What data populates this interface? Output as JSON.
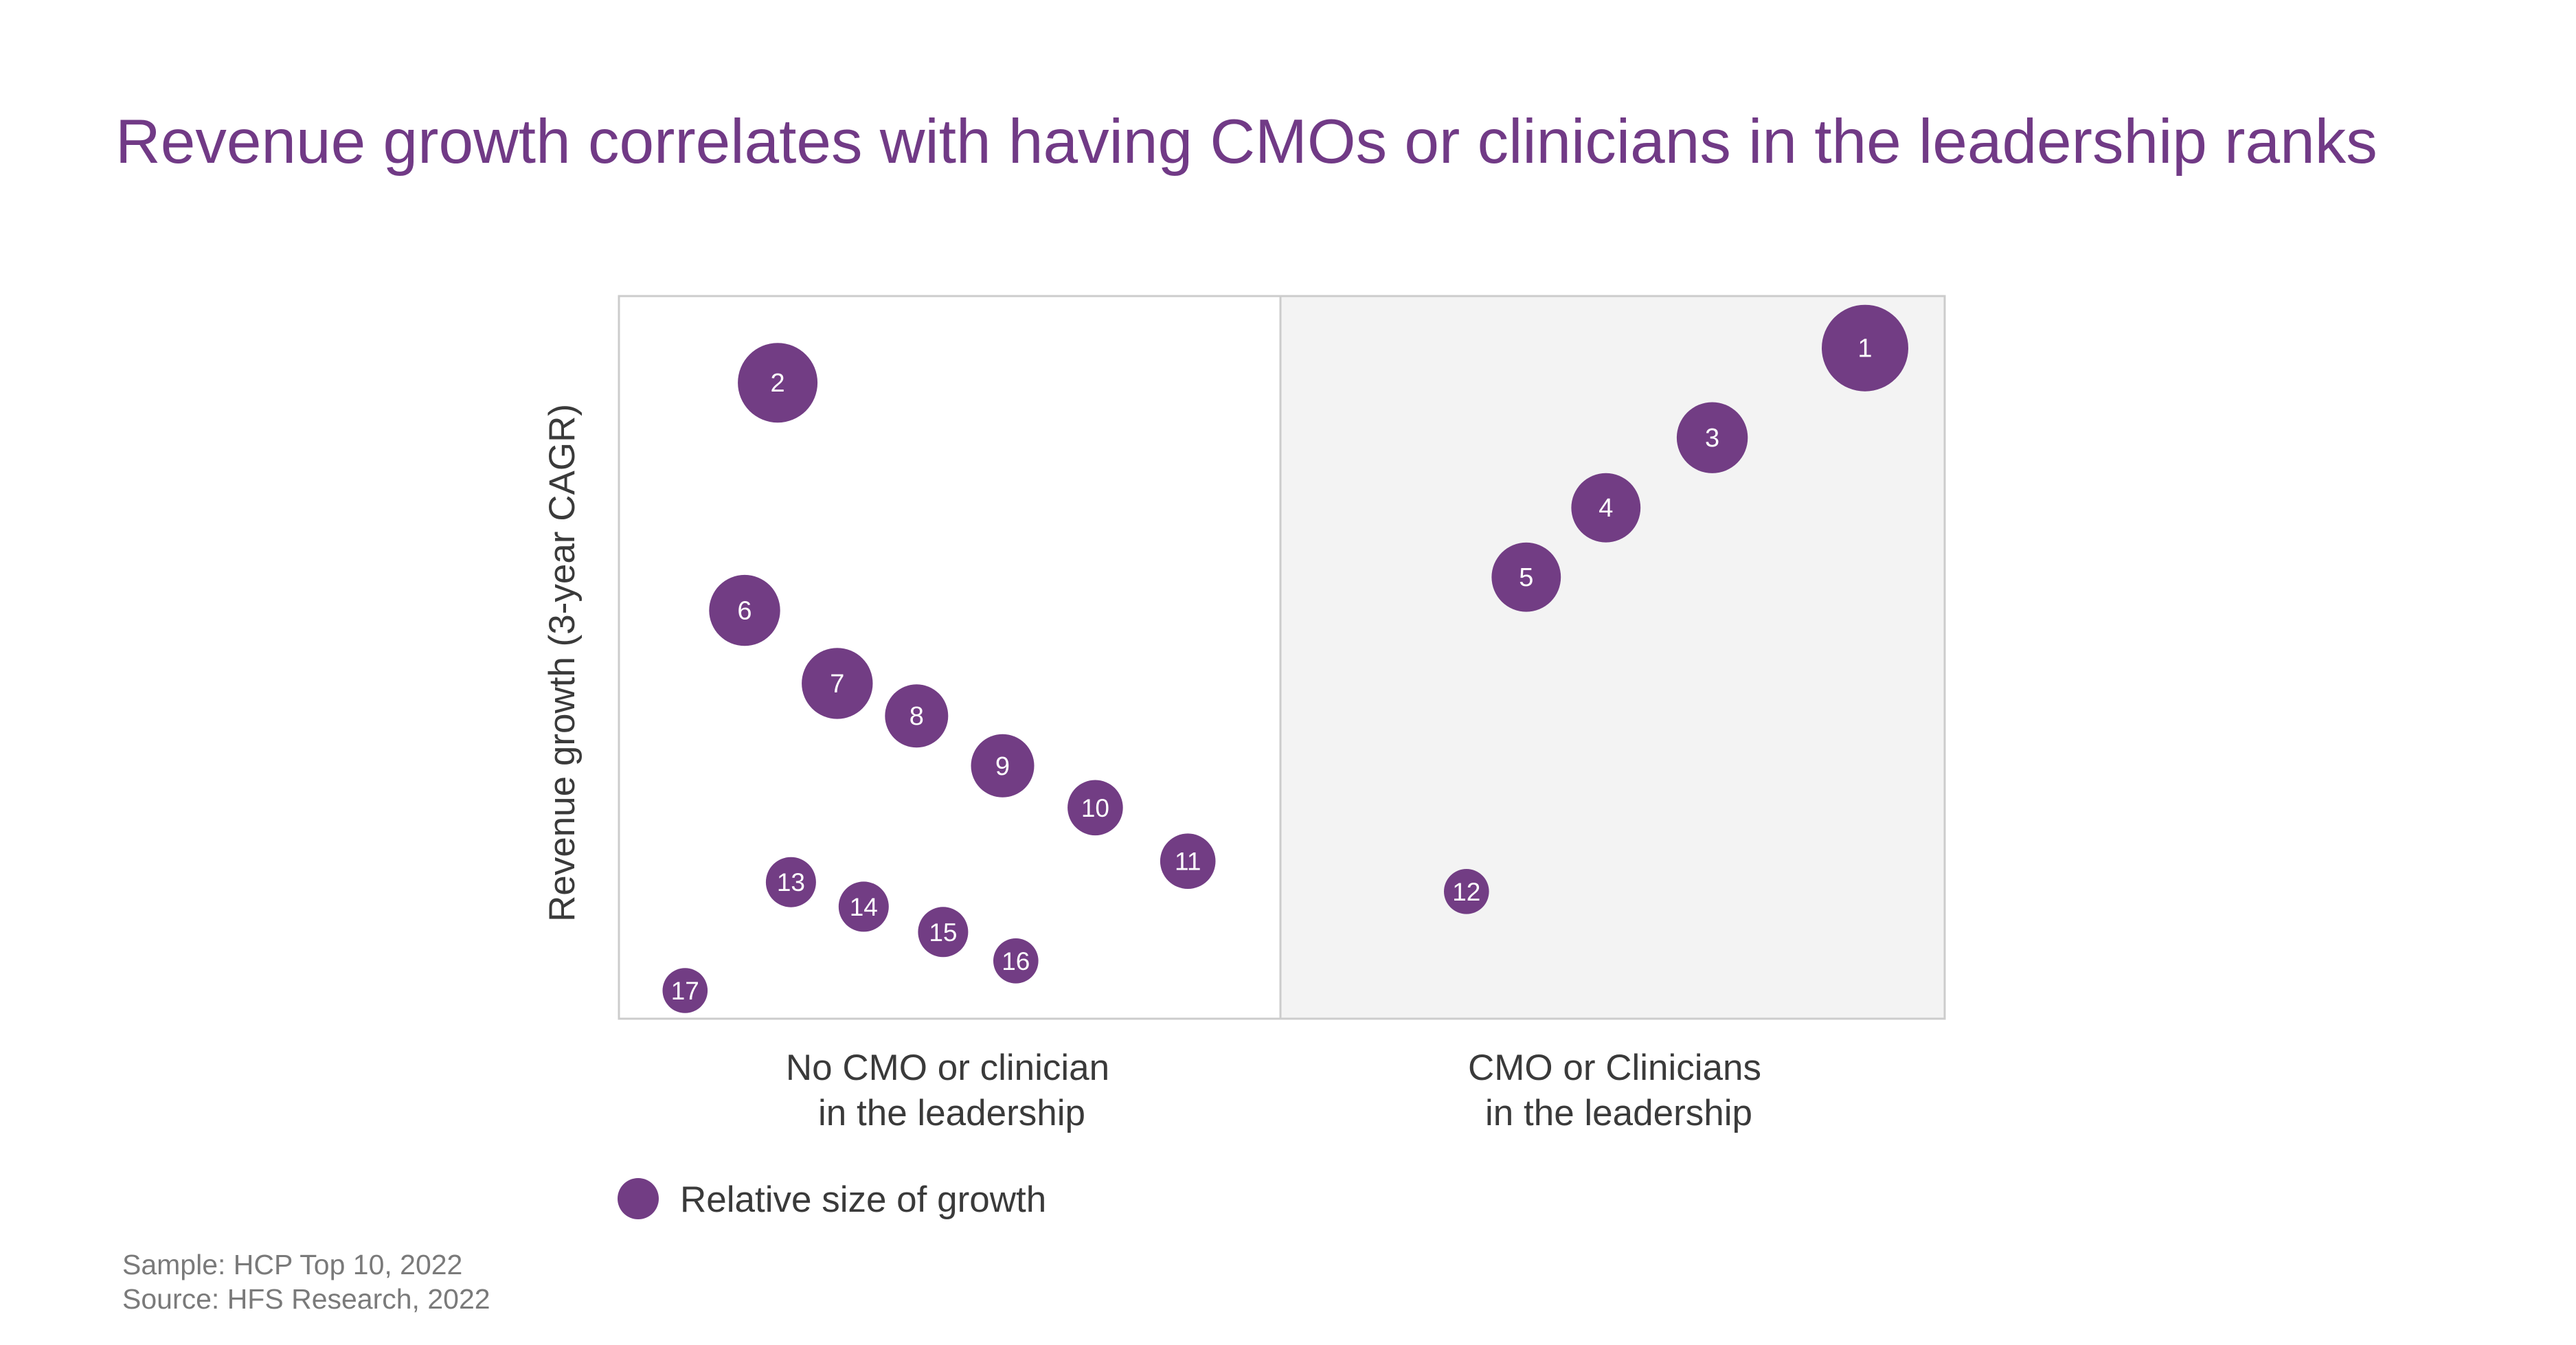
{
  "colors": {
    "accent": "#713a86",
    "bubble": "#723d84",
    "panel_right_bg": "#f3f3f3",
    "panel_border": "#cccccc",
    "text": "#3a3a3a",
    "note": "#7a7a7a"
  },
  "chart_data": {
    "type": "scatter",
    "title": "Revenue growth correlates with having CMOs or clinicians in the leadership ranks",
    "ylabel": "Revenue growth (3-year CAGR)",
    "xlabel": "",
    "categories": [
      {
        "lines": [
          "No CMO or clinician",
          "in the leadership"
        ]
      },
      {
        "lines": [
          "CMO or Clinicians",
          "in the leadership"
        ]
      }
    ],
    "grid": false,
    "legend": {
      "placement": "bottom-left",
      "label": "Relative size of growth"
    },
    "points": [
      {
        "label": "1",
        "group": 1,
        "x": 0.88,
        "y": 0.928,
        "size": 1.0
      },
      {
        "label": "2",
        "group": 0,
        "x": 0.24,
        "y": 0.88,
        "size": 0.92
      },
      {
        "label": "3",
        "group": 1,
        "x": 0.65,
        "y": 0.804,
        "size": 0.82
      },
      {
        "label": "4",
        "group": 1,
        "x": 0.49,
        "y": 0.707,
        "size": 0.8
      },
      {
        "label": "5",
        "group": 1,
        "x": 0.37,
        "y": 0.611,
        "size": 0.8
      },
      {
        "label": "6",
        "group": 0,
        "x": 0.19,
        "y": 0.565,
        "size": 0.82
      },
      {
        "label": "7",
        "group": 0,
        "x": 0.33,
        "y": 0.464,
        "size": 0.82
      },
      {
        "label": "8",
        "group": 0,
        "x": 0.45,
        "y": 0.419,
        "size": 0.73
      },
      {
        "label": "9",
        "group": 0,
        "x": 0.58,
        "y": 0.35,
        "size": 0.73
      },
      {
        "label": "10",
        "group": 0,
        "x": 0.72,
        "y": 0.292,
        "size": 0.64
      },
      {
        "label": "11",
        "group": 0,
        "x": 0.86,
        "y": 0.218,
        "size": 0.64
      },
      {
        "label": "12",
        "group": 1,
        "x": 0.28,
        "y": 0.176,
        "size": 0.52
      },
      {
        "label": "13",
        "group": 0,
        "x": 0.26,
        "y": 0.189,
        "size": 0.58
      },
      {
        "label": "14",
        "group": 0,
        "x": 0.37,
        "y": 0.155,
        "size": 0.58
      },
      {
        "label": "15",
        "group": 0,
        "x": 0.49,
        "y": 0.12,
        "size": 0.58
      },
      {
        "label": "16",
        "group": 0,
        "x": 0.6,
        "y": 0.08,
        "size": 0.52
      },
      {
        "label": "17",
        "group": 0,
        "x": 0.1,
        "y": 0.039,
        "size": 0.52
      }
    ]
  },
  "notes": {
    "sample": "Sample: HCP Top 10, 2022",
    "source": "Source: HFS Research, 2022"
  }
}
